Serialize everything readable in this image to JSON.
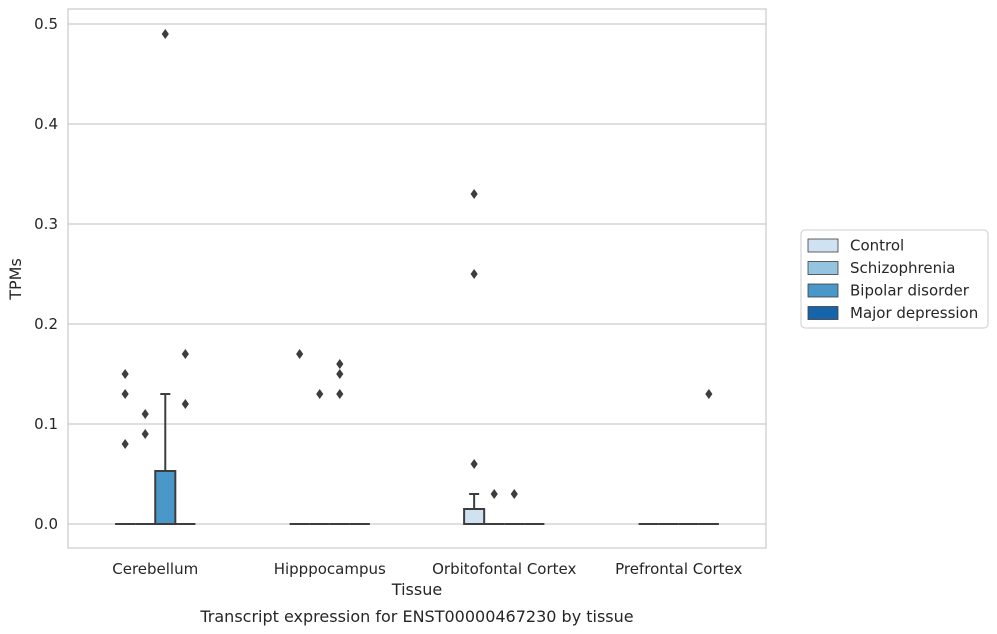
{
  "chart_data": {
    "type": "box",
    "title": "",
    "caption": "Transcript expression for ENST00000467230 by tissue",
    "xlabel": "Tissue",
    "ylabel": "TPMs",
    "ylim": [
      -0.024,
      0.515
    ],
    "yticks": [
      "0.0",
      "0.1",
      "0.2",
      "0.3",
      "0.4",
      "0.5"
    ],
    "ytick_values": [
      0.0,
      0.1,
      0.2,
      0.3,
      0.4,
      0.5
    ],
    "grid": true,
    "legend_position": "right",
    "categories": [
      "Cerebellum",
      "Hipppocampus",
      "Orbitofontal Cortex",
      "Prefrontal Cortex"
    ],
    "series": [
      {
        "name": "Control",
        "color": "#d0e1f2",
        "boxes": [
          {
            "q1": 0.0,
            "median": 0.0,
            "q3": 0.0,
            "whislo": 0.0,
            "whishi": 0.0,
            "fliers": [
              0.15,
              0.13,
              0.08
            ]
          },
          {
            "q1": 0.0,
            "median": 0.0,
            "q3": 0.0,
            "whislo": 0.0,
            "whishi": 0.0,
            "fliers": [
              0.17
            ]
          },
          {
            "q1": 0.0,
            "median": 0.0,
            "q3": 0.015,
            "whislo": 0.0,
            "whishi": 0.03,
            "fliers": [
              0.33,
              0.25,
              0.06
            ]
          },
          {
            "q1": 0.0,
            "median": 0.0,
            "q3": 0.0,
            "whislo": 0.0,
            "whishi": 0.0,
            "fliers": []
          }
        ]
      },
      {
        "name": "Schizophrenia",
        "color": "#94c4df",
        "boxes": [
          {
            "q1": 0.0,
            "median": 0.0,
            "q3": 0.0,
            "whislo": 0.0,
            "whishi": 0.0,
            "fliers": [
              0.11,
              0.09
            ]
          },
          {
            "q1": 0.0,
            "median": 0.0,
            "q3": 0.0,
            "whislo": 0.0,
            "whishi": 0.0,
            "fliers": [
              0.13
            ]
          },
          {
            "q1": 0.0,
            "median": 0.0,
            "q3": 0.0,
            "whislo": 0.0,
            "whishi": 0.0,
            "fliers": [
              0.03
            ]
          },
          {
            "q1": 0.0,
            "median": 0.0,
            "q3": 0.0,
            "whislo": 0.0,
            "whishi": 0.0,
            "fliers": []
          }
        ]
      },
      {
        "name": "Bipolar disorder",
        "color": "#4a98c9",
        "boxes": [
          {
            "q1": 0.0,
            "median": 0.0,
            "q3": 0.053,
            "whislo": 0.0,
            "whishi": 0.13,
            "fliers": [
              0.49
            ]
          },
          {
            "q1": 0.0,
            "median": 0.0,
            "q3": 0.0,
            "whislo": 0.0,
            "whishi": 0.0,
            "fliers": [
              0.16,
              0.15,
              0.13
            ]
          },
          {
            "q1": 0.0,
            "median": 0.0,
            "q3": 0.0,
            "whislo": 0.0,
            "whishi": 0.0,
            "fliers": [
              0.03
            ]
          },
          {
            "q1": 0.0,
            "median": 0.0,
            "q3": 0.0,
            "whislo": 0.0,
            "whishi": 0.0,
            "fliers": []
          }
        ]
      },
      {
        "name": "Major depression",
        "color": "#1764ab",
        "boxes": [
          {
            "q1": 0.0,
            "median": 0.0,
            "q3": 0.0,
            "whislo": 0.0,
            "whishi": 0.0,
            "fliers": [
              0.17,
              0.12
            ]
          },
          {
            "q1": 0.0,
            "median": 0.0,
            "q3": 0.0,
            "whislo": 0.0,
            "whishi": 0.0,
            "fliers": []
          },
          {
            "q1": 0.0,
            "median": 0.0,
            "q3": 0.0,
            "whislo": 0.0,
            "whishi": 0.0,
            "fliers": []
          },
          {
            "q1": 0.0,
            "median": 0.0,
            "q3": 0.0,
            "whislo": 0.0,
            "whishi": 0.0,
            "fliers": [
              0.13
            ]
          }
        ]
      }
    ]
  }
}
